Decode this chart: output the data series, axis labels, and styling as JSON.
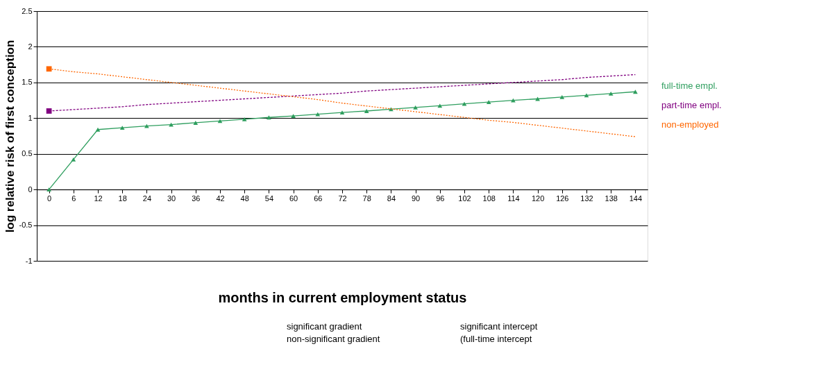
{
  "chart_data": {
    "type": "line",
    "xlabel": "months in current employment status",
    "ylabel": "log relative risk of first conception",
    "categories": [
      "0",
      "6",
      "12",
      "18",
      "24",
      "30",
      "36",
      "42",
      "48",
      "54",
      "60",
      "66",
      "72",
      "78",
      "84",
      "90",
      "96",
      "102",
      "108",
      "114",
      "120",
      "126",
      "132",
      "138",
      "144"
    ],
    "series": [
      {
        "name": "full-time empl.",
        "color": "#2e9e5e",
        "line_style": "solid",
        "marker": "triangle",
        "values": [
          0,
          0.42,
          0.84,
          0.865,
          0.89,
          0.91,
          0.935,
          0.96,
          0.985,
          1.01,
          1.03,
          1.055,
          1.08,
          1.1,
          1.125,
          1.15,
          1.175,
          1.2,
          1.225,
          1.25,
          1.27,
          1.295,
          1.32,
          1.345,
          1.37
        ]
      },
      {
        "name": "part-time empl.",
        "color": "#800080",
        "line_style": "dashed",
        "marker": "none",
        "values": [
          1.1,
          1.12,
          1.14,
          1.16,
          1.19,
          1.21,
          1.23,
          1.25,
          1.27,
          1.29,
          1.31,
          1.33,
          1.35,
          1.38,
          1.4,
          1.42,
          1.44,
          1.46,
          1.48,
          1.5,
          1.52,
          1.54,
          1.57,
          1.59,
          1.61
        ]
      },
      {
        "name": "non-employed",
        "color": "#ff6600",
        "line_style": "dotted",
        "marker": "none",
        "values": [
          1.69,
          1.65,
          1.62,
          1.58,
          1.54,
          1.5,
          1.46,
          1.42,
          1.38,
          1.34,
          1.3,
          1.26,
          1.21,
          1.17,
          1.13,
          1.09,
          1.05,
          1.01,
          0.97,
          0.94,
          0.9,
          0.86,
          0.82,
          0.78,
          0.74
        ]
      },
      {
        "type": "scatter",
        "color": "#800080",
        "marker": "square",
        "x": [
          "0"
        ],
        "values": [
          1.1
        ]
      },
      {
        "type": "scatter",
        "color": "#ff6600",
        "marker": "square",
        "x": [
          "0"
        ],
        "values": [
          1.69
        ]
      }
    ],
    "ylim": [
      -1,
      2.5
    ],
    "yticks": [
      -1,
      -0.5,
      0,
      0.5,
      1,
      1.5,
      2,
      2.5
    ],
    "grid": "y",
    "legend": "right",
    "annotations": [
      "significant gradient",
      "non-significant gradient",
      "significant intercept",
      "(full-time intercept"
    ]
  }
}
